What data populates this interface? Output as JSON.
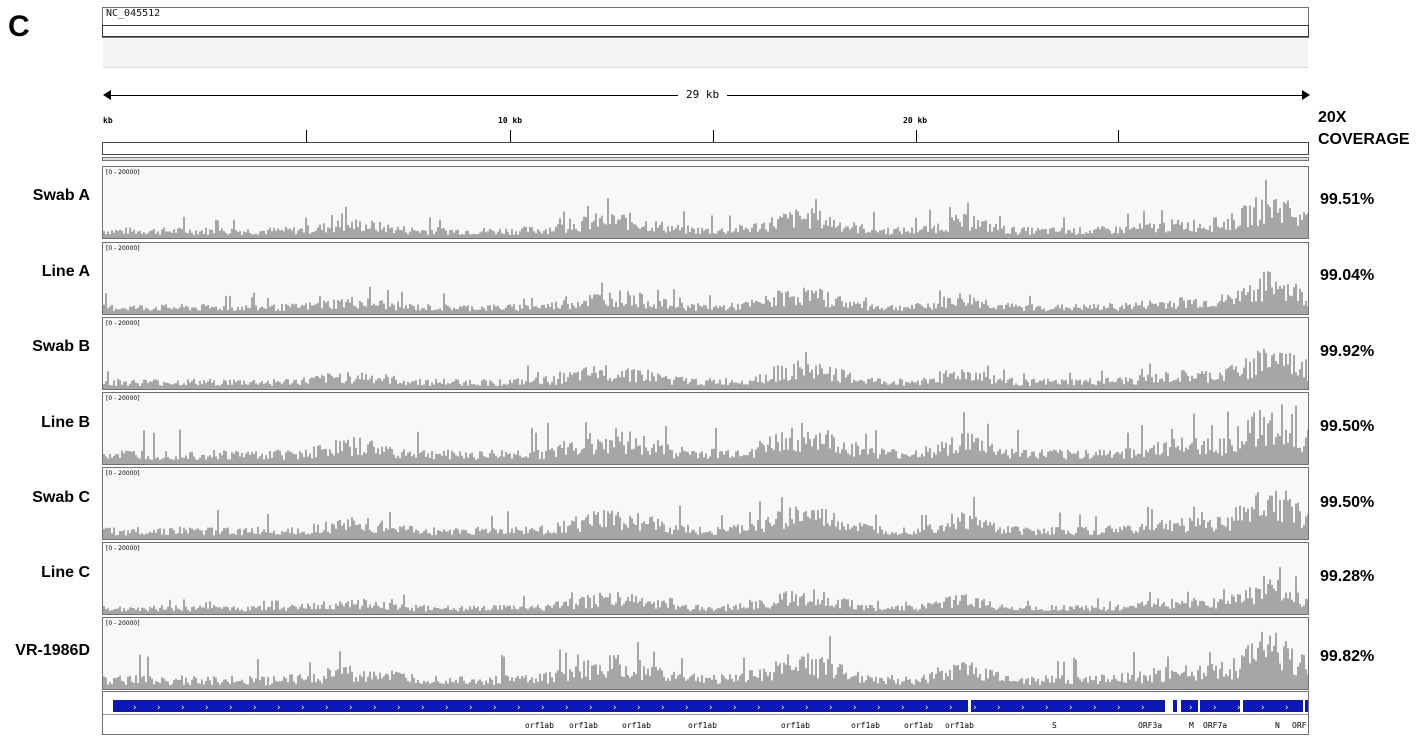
{
  "panel_letter": "C",
  "chromosome": "NC_045512",
  "span_label": "29 kb",
  "ruler_labels": [
    "kb",
    "10 kb",
    "20 kb"
  ],
  "coverage_header": [
    "20X",
    "COVERAGE"
  ],
  "bar_color": "#a6a6a6",
  "gene_color": "#0b18b4",
  "tracks": [
    {
      "name": "Swab A",
      "range": "[0 - 20000]",
      "coverage": "99.51%",
      "level": 0.55
    },
    {
      "name": "Line A",
      "range": "[0 - 20000]",
      "coverage": "99.04%",
      "level": 0.45
    },
    {
      "name": "Swab B",
      "range": "[0 - 20000]",
      "coverage": "99.92%",
      "level": 0.5
    },
    {
      "name": "Line B",
      "range": "[0 - 20000]",
      "coverage": "99.50%",
      "level": 0.95
    },
    {
      "name": "Swab C",
      "range": "[0 - 20000]",
      "coverage": "99.50%",
      "level": 0.7
    },
    {
      "name": "Line C",
      "range": "[0 - 20000]",
      "coverage": "99.28%",
      "level": 0.35
    },
    {
      "name": "VR-1986D",
      "range": "[0 - 20000]",
      "coverage": "99.82%",
      "level": 0.85
    }
  ],
  "genes": [
    "orf1ab",
    "orf1ab",
    "orf1ab",
    "orf1ab",
    "orf1ab",
    "orf1ab",
    "orf1ab",
    "orf1ab",
    "S",
    "ORF3a",
    "M",
    "ORF7a",
    "N",
    "ORF"
  ]
}
